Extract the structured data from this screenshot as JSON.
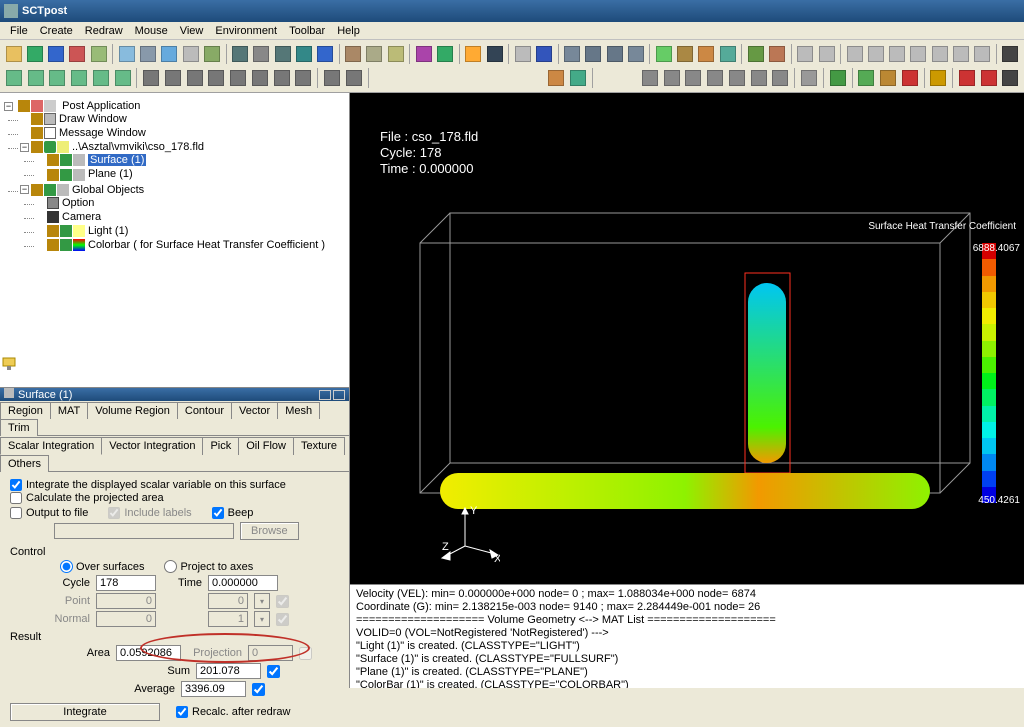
{
  "title": "SCTpost",
  "menu": [
    "File",
    "Create",
    "Redraw",
    "Mouse",
    "View",
    "Environment",
    "Toolbar",
    "Help"
  ],
  "tree": {
    "root": "Post Application",
    "n_draw": "Draw Window",
    "n_msg": "Message Window",
    "n_file": "..\\Asztal\\vmviki\\cso_178.fld",
    "n_surf": "Surface (1)",
    "n_plane": "Plane (1)",
    "n_glob": "Global Objects",
    "n_opt": "Option",
    "n_cam": "Camera",
    "n_light": "Light (1)",
    "n_cbar": "Colorbar ( for Surface Heat Transfer Coefficient )"
  },
  "panel": {
    "title": "Surface (1)",
    "tabs_row1": [
      "Region",
      "MAT",
      "Volume Region",
      "Contour",
      "Vector",
      "Mesh",
      "Trim"
    ],
    "tabs_row2": [
      "Scalar Integration",
      "Vector Integration",
      "Pick",
      "Oil Flow",
      "Texture",
      "Others"
    ],
    "active_tab": "Scalar Integration",
    "chk_integrate": "Integrate the displayed scalar variable on this surface",
    "chk_calc": "Calculate the projected area",
    "chk_output": "Output to file",
    "chk_labels": "Include labels",
    "chk_beep": "Beep",
    "btn_browse": "Browse",
    "lbl_control": "Control",
    "radio_over": "Over surfaces",
    "radio_proj": "Project to axes",
    "lbl_cycle": "Cycle",
    "val_cycle": "178",
    "lbl_time": "Time",
    "val_time": "0.000000",
    "lbl_point": "Point",
    "val_point1": "0",
    "val_point2": "0",
    "lbl_normal": "Normal",
    "val_normal1": "0",
    "val_normal2": "1",
    "lbl_result": "Result",
    "lbl_area": "Area",
    "val_area": "0.0592086",
    "lbl_proj": "Projection",
    "val_proj": "0",
    "lbl_sum": "Sum",
    "val_sum": "201.078",
    "lbl_avg": "Average",
    "val_avg": "3396.09",
    "btn_integrate": "Integrate",
    "chk_recalc": "Recalc. after redraw"
  },
  "viewport": {
    "file_lbl": "File : cso_178.fld",
    "cycle_lbl": "Cycle: 178",
    "time_lbl": "Time : 0.000000",
    "cbar_title": "Surface Heat Transfer Coefficient",
    "cbar_max": "6888.4067",
    "cbar_min": "450.4261",
    "cbar_colors": [
      "#d40000",
      "#f25b00",
      "#f29900",
      "#f2c800",
      "#f2ed00",
      "#c8f200",
      "#8ef200",
      "#4bf200",
      "#00f21a",
      "#00f262",
      "#00f2a8",
      "#00f2e6",
      "#00c6f2",
      "#0088f2",
      "#0040f2",
      "#0000e0"
    ],
    "axes": {
      "x": "X",
      "y": "Y",
      "z": "Z"
    }
  },
  "log": [
    "Velocity (VEL): min= 0.000000e+000  node= 0 ; max= 1.088034e+000  node= 6874",
    "Coordinate (G): min= 2.138215e-003  node= 9140 ; max= 2.284449e-001  node= 26",
    "==================== Volume Geometry <--> MAT List ====================",
    "VOLID=0 (VOL=NotRegistered 'NotRegistered') --->",
    "\"Light (1)\" is created. (CLASSTYPE=\"LIGHT\")",
    "\"Surface (1)\" is created. (CLASSTYPE=\"FULLSURF\")",
    "\"Plane (1)\" is created. (CLASSTYPE=\"PLANE\")",
    "\"ColorBar (1)\" is created. (CLASSTYPE=\"COLORBAR\")"
  ]
}
